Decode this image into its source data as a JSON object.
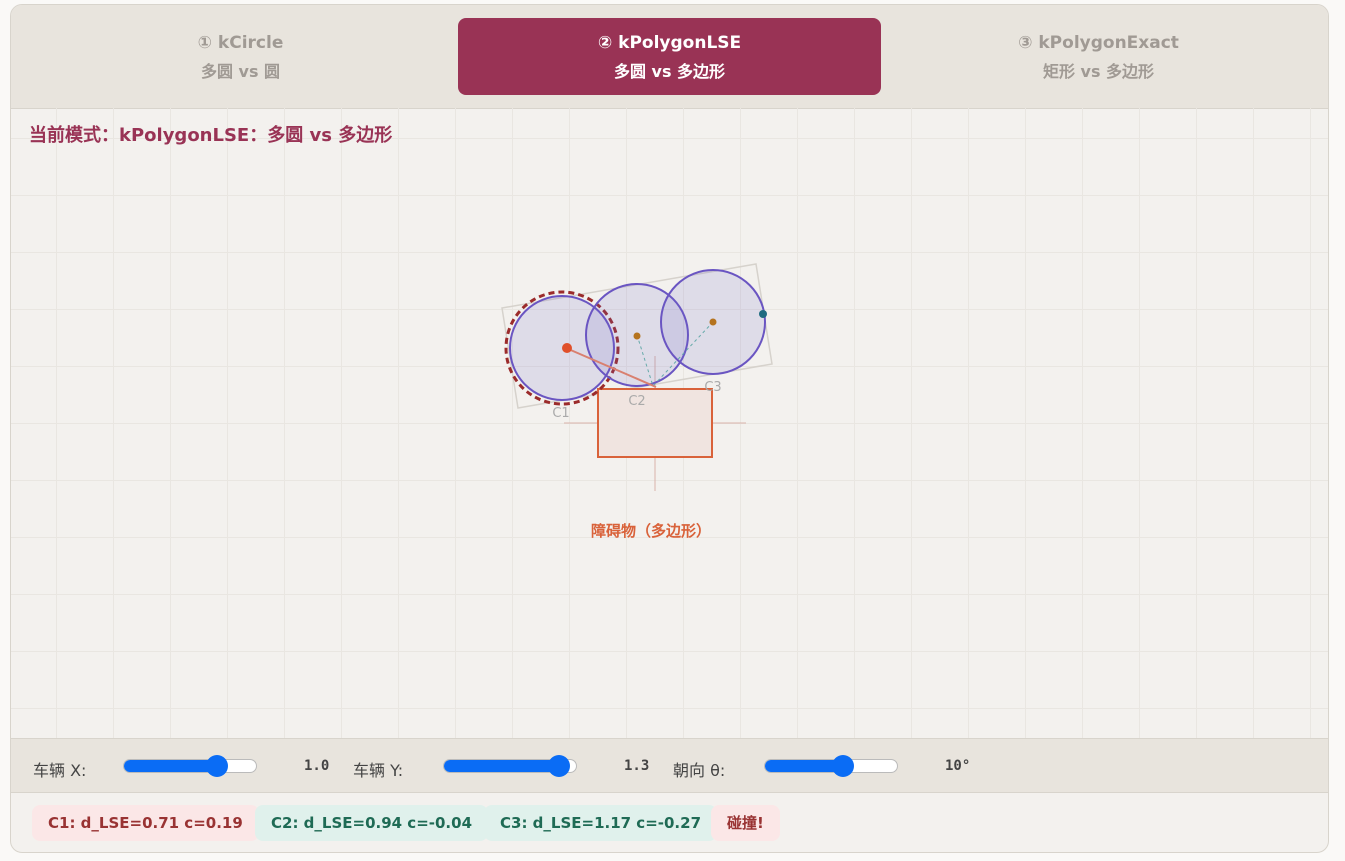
{
  "tabs": [
    {
      "title": "① kCircle",
      "subtitle": "多圆 vs 圆"
    },
    {
      "title": "② kPolygonLSE",
      "subtitle": "多圆 vs 多边形"
    },
    {
      "title": "③ kPolygonExact",
      "subtitle": "矩形 vs 多边形"
    }
  ],
  "mode": "当前模式：kPolygonLSE：多圆 vs 多边形",
  "canvas": {
    "circles": [
      "C1",
      "C2",
      "C3"
    ],
    "obstacle": "障碍物（多边形）"
  },
  "controls": [
    {
      "label": "车辆 X:",
      "value": "1.0"
    },
    {
      "label": "车辆 Y:",
      "value": "1.3"
    },
    {
      "label": "朝向 θ:",
      "value": "10°"
    }
  ],
  "status": [
    "C1: d_LSE=0.71 c=0.19",
    "C2: d_LSE=0.94 c=-0.04",
    "C3: d_LSE=1.17 c=-0.27",
    "碰撞!"
  ]
}
